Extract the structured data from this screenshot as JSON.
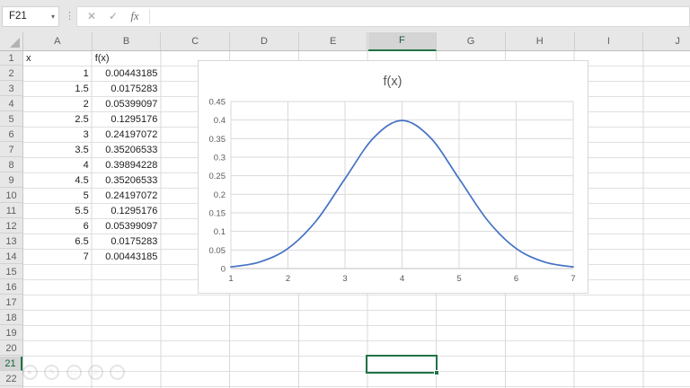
{
  "name_box": {
    "value": "F21"
  },
  "formula_bar": {
    "cancel_label": "✕",
    "enter_label": "✓",
    "fx_label": "fx",
    "value": ""
  },
  "grid": {
    "columns": [
      "A",
      "B",
      "C",
      "D",
      "E",
      "F",
      "G",
      "H",
      "I",
      "J"
    ],
    "selected_column": "F",
    "visible_rows": 22,
    "selected_row": 21,
    "selected_cell": "F21"
  },
  "table": {
    "headers": [
      "x",
      "f(x)"
    ],
    "rows": [
      [
        "1",
        "0.00443185"
      ],
      [
        "1.5",
        "0.0175283"
      ],
      [
        "2",
        "0.05399097"
      ],
      [
        "2.5",
        "0.1295176"
      ],
      [
        "3",
        "0.24197072"
      ],
      [
        "3.5",
        "0.35206533"
      ],
      [
        "4",
        "0.39894228"
      ],
      [
        "4.5",
        "0.35206533"
      ],
      [
        "5",
        "0.24197072"
      ],
      [
        "5.5",
        "0.1295176"
      ],
      [
        "6",
        "0.05399097"
      ],
      [
        "6.5",
        "0.0175283"
      ],
      [
        "7",
        "0.00443185"
      ]
    ]
  },
  "chart_data": {
    "type": "line",
    "title": "f(x)",
    "x": [
      1,
      1.5,
      2,
      2.5,
      3,
      3.5,
      4,
      4.5,
      5,
      5.5,
      6,
      6.5,
      7
    ],
    "series": [
      {
        "name": "f(x)",
        "values": [
          0.00443185,
          0.0175283,
          0.05399097,
          0.1295176,
          0.24197072,
          0.35206533,
          0.39894228,
          0.35206533,
          0.24197072,
          0.1295176,
          0.05399097,
          0.0175283,
          0.00443185
        ]
      }
    ],
    "xlim": [
      1,
      7
    ],
    "ylim": [
      0,
      0.45
    ],
    "x_tick_labels": [
      "1",
      "2",
      "3",
      "4",
      "5",
      "6",
      "7"
    ],
    "y_tick_labels": [
      "0",
      "0.05",
      "0.1",
      "0.15",
      "0.2",
      "0.25",
      "0.3",
      "0.35",
      "0.4",
      "0.45"
    ],
    "grid": "both",
    "legend": "none",
    "line_color": "#4472c4",
    "gridline_color": "#d9d9d9",
    "axis_color": "#bfbfbf",
    "label_color": "#595959"
  },
  "overlay_toolbar": {
    "icons": [
      {
        "name": "play-icon",
        "glyph": "▸"
      },
      {
        "name": "pencil-icon",
        "glyph": "✎"
      },
      {
        "name": "stop-icon",
        "glyph": "□"
      },
      {
        "name": "magnifier-icon",
        "glyph": "◎"
      },
      {
        "name": "minus-icon",
        "glyph": "−"
      }
    ]
  },
  "colors": {
    "excel_green": "#217346",
    "header_bg": "#e7e7e7",
    "selected_header_bg": "#d4d4d4",
    "chart_line": "#4472c4"
  }
}
